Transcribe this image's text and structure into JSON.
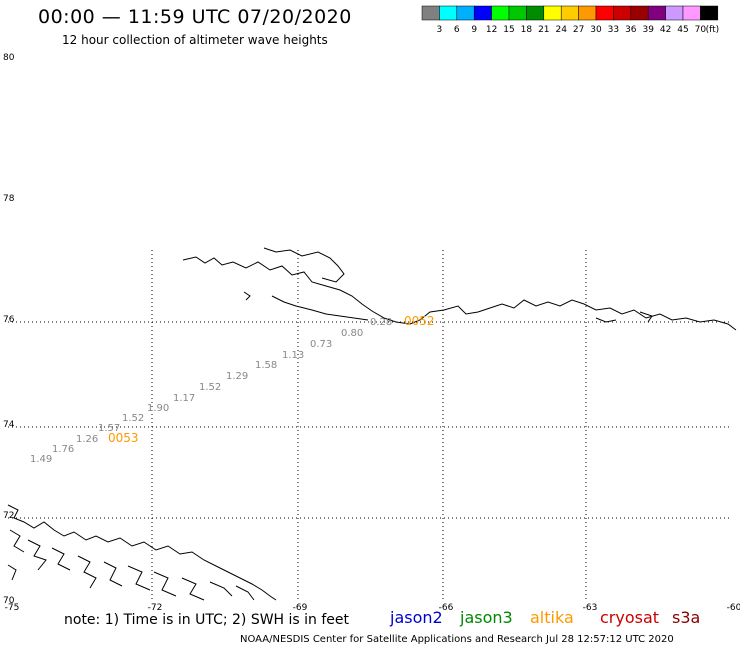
{
  "header": {
    "title": "00:00 — 11:59 UTC 07/20/2020",
    "subtitle": "12 hour collection of altimeter wave heights"
  },
  "legend": {
    "colors": [
      "#808080",
      "#00ffff",
      "#00b0ff",
      "#0000ff",
      "#00ff00",
      "#00c800",
      "#008c00",
      "#ffff00",
      "#ffcc00",
      "#ff9900",
      "#ff0000",
      "#cc0000",
      "#990000",
      "#800080",
      "#cc99ff",
      "#ff99ff",
      "#000000"
    ],
    "labels": [
      "3",
      "6",
      "9",
      "12",
      "15",
      "18",
      "21",
      "24",
      "27",
      "30",
      "33",
      "36",
      "39",
      "42",
      "45",
      "70",
      "(ft)"
    ]
  },
  "axes": {
    "lon_ticks": [
      "-75",
      "-72",
      "-69",
      "-66",
      "-63",
      "-60"
    ],
    "lat_ticks": [
      "80",
      "78",
      "76",
      "74",
      "72",
      "70"
    ]
  },
  "track": {
    "values": [
      "1.49",
      "1.76",
      "1.26",
      "1.57",
      "1.52",
      "1.90",
      "1.17",
      "1.52",
      "1.29",
      "1.58",
      "1.13",
      "0.73",
      "0.80",
      "0.28"
    ],
    "time_labels": [
      "0053",
      "0052"
    ]
  },
  "footer": {
    "note": "note:  1) Time is in UTC;  2) SWH is in feet",
    "satellites": [
      {
        "name": "jason2",
        "color": "#0000cc"
      },
      {
        "name": "jason3",
        "color": "#008800"
      },
      {
        "name": "altika",
        "color": "#ff9900"
      },
      {
        "name": "cryosat",
        "color": "#cc0000"
      },
      {
        "name": "s3a",
        "color": "#880000"
      }
    ],
    "credit": "NOAA/NESDIS Center for Satellite Applications and Research    Jul 28 12:57:12 UTC 2020"
  }
}
